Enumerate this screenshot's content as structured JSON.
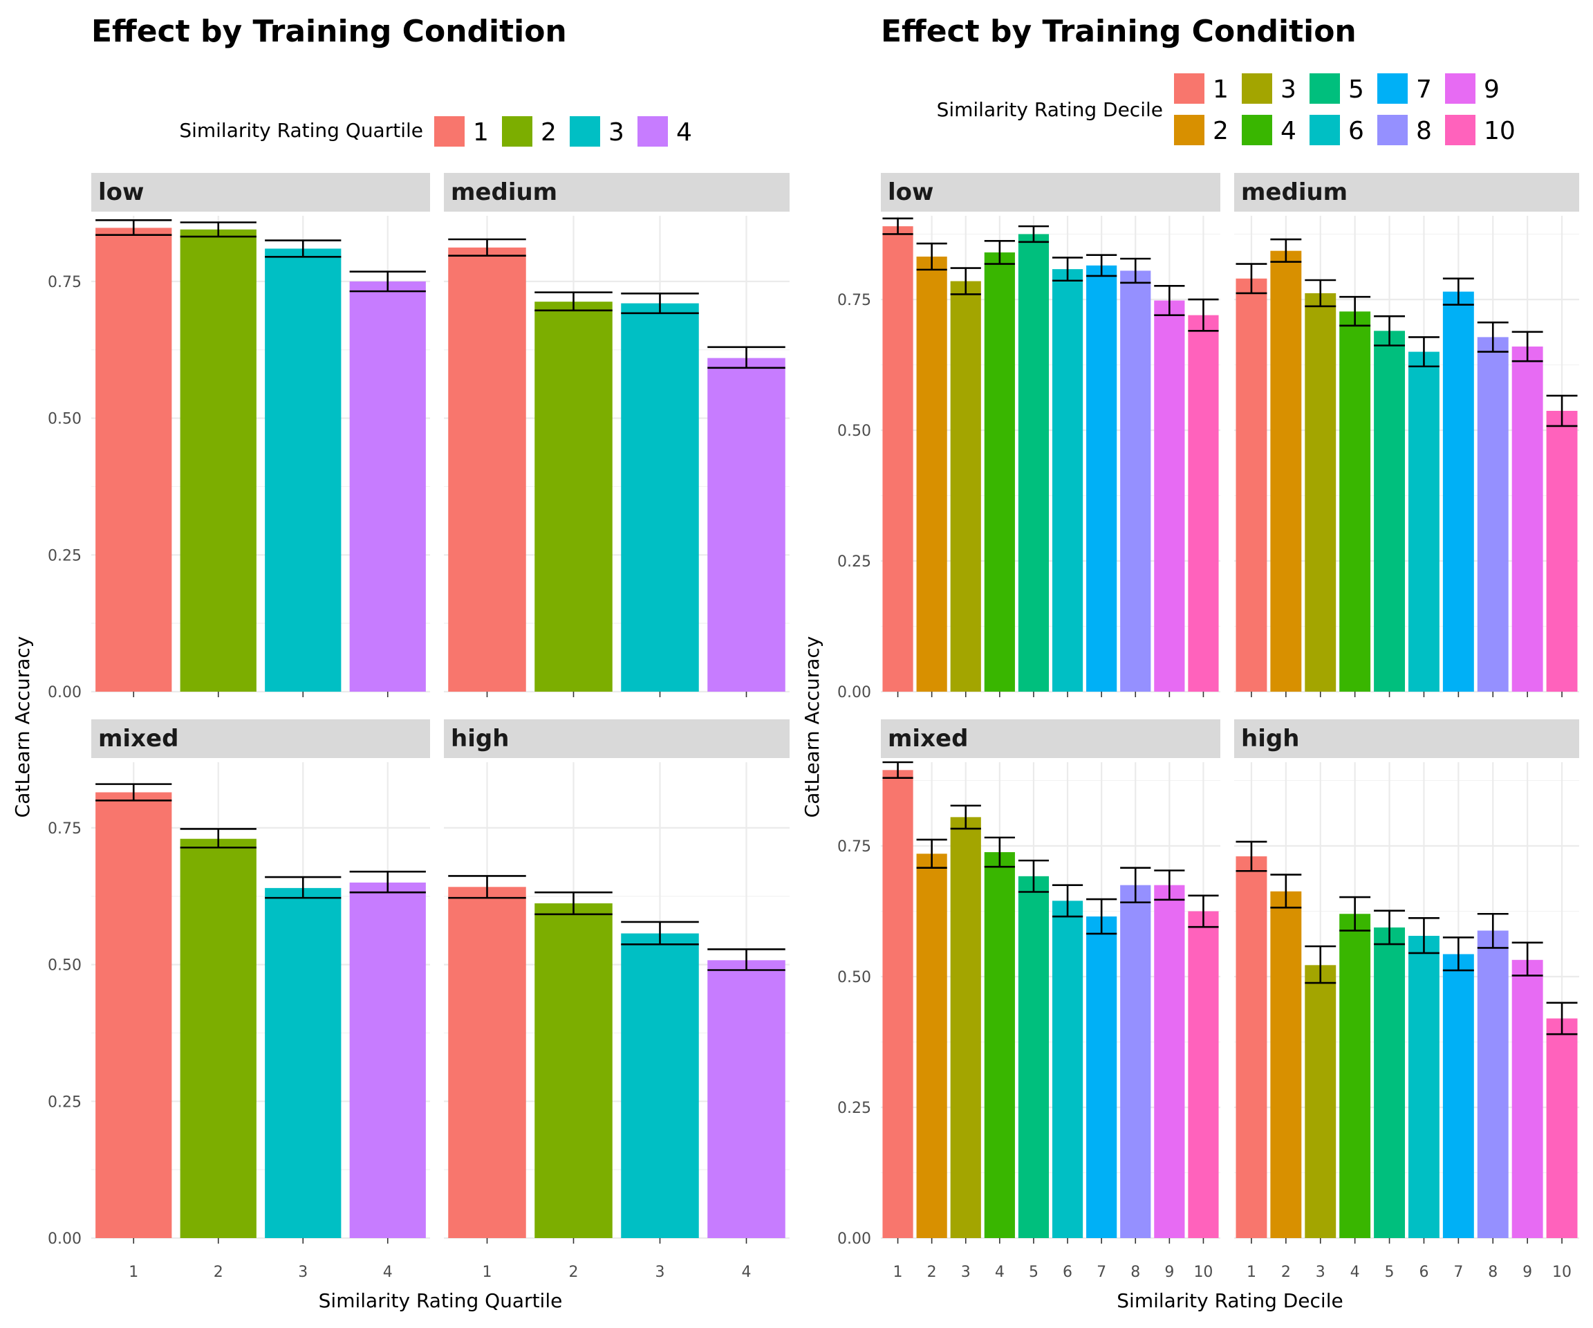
{
  "chart_data": [
    {
      "type": "bar",
      "title": "Effect by Training Condition",
      "xlabel": "Similarity Rating Quartile",
      "ylabel": "CatLearn Accuracy",
      "ylim": [
        0,
        0.87
      ],
      "yticks": [
        "0.00",
        "0.25",
        "0.50",
        "0.75"
      ],
      "categories": [
        "1",
        "2",
        "3",
        "4"
      ],
      "legend": {
        "title": "Similarity Rating Quartile",
        "position": "top",
        "entries": [
          "1",
          "2",
          "3",
          "4"
        ],
        "colors": [
          "#F8766D",
          "#7CAE00",
          "#00BFC4",
          "#C77CFF"
        ]
      },
      "facets": [
        {
          "label": "low",
          "values": [
            0.848,
            0.845,
            0.81,
            0.75
          ],
          "err_low": [
            0.835,
            0.832,
            0.795,
            0.732
          ],
          "err_high": [
            0.862,
            0.858,
            0.825,
            0.768
          ]
        },
        {
          "label": "medium",
          "values": [
            0.812,
            0.713,
            0.71,
            0.61
          ],
          "err_low": [
            0.797,
            0.697,
            0.692,
            0.592
          ],
          "err_high": [
            0.827,
            0.73,
            0.728,
            0.63
          ]
        },
        {
          "label": "mixed",
          "values": [
            0.815,
            0.73,
            0.64,
            0.65
          ],
          "err_low": [
            0.8,
            0.714,
            0.622,
            0.632
          ],
          "err_high": [
            0.83,
            0.748,
            0.66,
            0.67
          ]
        },
        {
          "label": "high",
          "values": [
            0.642,
            0.612,
            0.557,
            0.508
          ],
          "err_low": [
            0.622,
            0.592,
            0.537,
            0.49
          ],
          "err_high": [
            0.662,
            0.632,
            0.578,
            0.528
          ]
        }
      ]
    },
    {
      "type": "bar",
      "title": "Effect by Training Condition",
      "xlabel": "Similarity Rating Decile",
      "ylabel": "CatLearn Accuracy",
      "ylim": [
        0,
        0.91
      ],
      "yticks": [
        "0.00",
        "0.25",
        "0.50",
        "0.75"
      ],
      "categories": [
        "1",
        "2",
        "3",
        "4",
        "5",
        "6",
        "7",
        "8",
        "9",
        "10"
      ],
      "legend": {
        "title": "Similarity Rating Decile",
        "position": "top",
        "entries": [
          "1",
          "2",
          "3",
          "4",
          "5",
          "6",
          "7",
          "8",
          "9",
          "10"
        ],
        "colors": [
          "#F8766D",
          "#D89000",
          "#A3A500",
          "#39B600",
          "#00BF7D",
          "#00BFC4",
          "#00B0F6",
          "#9590FF",
          "#E76BF3",
          "#FF62BC"
        ]
      },
      "facets": [
        {
          "label": "low",
          "values": [
            0.89,
            0.832,
            0.785,
            0.84,
            0.875,
            0.808,
            0.815,
            0.805,
            0.748,
            0.72
          ],
          "err_low": [
            0.875,
            0.807,
            0.76,
            0.818,
            0.86,
            0.786,
            0.795,
            0.782,
            0.72,
            0.69
          ],
          "err_high": [
            0.905,
            0.857,
            0.81,
            0.862,
            0.89,
            0.83,
            0.835,
            0.828,
            0.776,
            0.75
          ]
        },
        {
          "label": "medium",
          "values": [
            0.79,
            0.843,
            0.762,
            0.727,
            0.69,
            0.65,
            0.765,
            0.678,
            0.66,
            0.537
          ],
          "err_low": [
            0.762,
            0.822,
            0.737,
            0.7,
            0.662,
            0.622,
            0.74,
            0.65,
            0.632,
            0.508
          ],
          "err_high": [
            0.818,
            0.865,
            0.787,
            0.755,
            0.718,
            0.678,
            0.79,
            0.706,
            0.688,
            0.566
          ]
        },
        {
          "label": "mixed",
          "values": [
            0.895,
            0.735,
            0.805,
            0.738,
            0.692,
            0.645,
            0.615,
            0.675,
            0.675,
            0.625
          ],
          "err_low": [
            0.88,
            0.708,
            0.783,
            0.71,
            0.662,
            0.615,
            0.582,
            0.642,
            0.647,
            0.595
          ],
          "err_high": [
            0.91,
            0.762,
            0.827,
            0.766,
            0.722,
            0.675,
            0.648,
            0.708,
            0.703,
            0.655
          ]
        },
        {
          "label": "high",
          "values": [
            0.73,
            0.663,
            0.522,
            0.62,
            0.594,
            0.578,
            0.543,
            0.588,
            0.532,
            0.42
          ],
          "err_low": [
            0.702,
            0.632,
            0.488,
            0.588,
            0.562,
            0.545,
            0.512,
            0.555,
            0.502,
            0.39
          ],
          "err_high": [
            0.758,
            0.695,
            0.558,
            0.652,
            0.626,
            0.612,
            0.575,
            0.62,
            0.565,
            0.45
          ]
        }
      ]
    }
  ]
}
